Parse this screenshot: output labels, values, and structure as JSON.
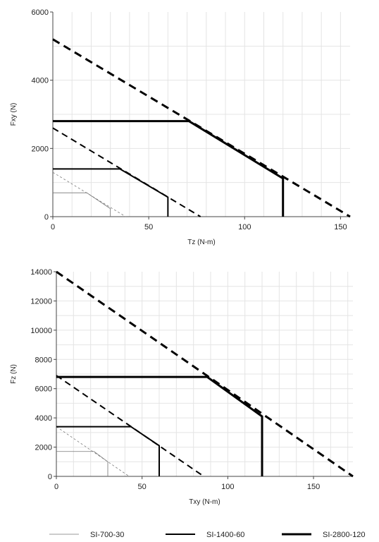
{
  "chart_data": [
    {
      "type": "line",
      "xlabel": "Tz (N-m)",
      "ylabel": "Fxy (N)",
      "xlim": [
        0,
        155
      ],
      "ylim": [
        0,
        6000
      ],
      "x_ticks": [
        0,
        50,
        100,
        150
      ],
      "y_ticks": [
        0,
        2000,
        4000,
        6000
      ],
      "grid": true,
      "series": [
        {
          "name": "SI-700-30",
          "color": "#777777",
          "envelope": [
            [
              0,
              1300
            ],
            [
              38,
              0
            ]
          ],
          "rated": [
            [
              0,
              700
            ],
            [
              17.7,
              700
            ],
            [
              30,
              235
            ],
            [
              30,
              0
            ]
          ]
        },
        {
          "name": "SI-1400-60",
          "color": "#000000",
          "envelope": [
            [
              0,
              2600
            ],
            [
              77,
              0
            ]
          ],
          "rated": [
            [
              0,
              1400
            ],
            [
              35,
              1400
            ],
            [
              60,
              570
            ],
            [
              60,
              0
            ]
          ]
        },
        {
          "name": "SI-2800-120",
          "color": "#000000",
          "envelope": [
            [
              0,
              5200
            ],
            [
              155,
              0
            ]
          ],
          "rated": [
            [
              0,
              2800
            ],
            [
              71,
              2800
            ],
            [
              120,
              1120
            ],
            [
              120,
              0
            ]
          ]
        }
      ]
    },
    {
      "type": "line",
      "xlabel": "Txy (N-m)",
      "ylabel": "Fz (N)",
      "xlim": [
        0,
        173
      ],
      "ylim": [
        0,
        14000
      ],
      "x_ticks": [
        0,
        50,
        100,
        150
      ],
      "y_ticks": [
        0,
        2000,
        4000,
        6000,
        8000,
        10000,
        12000,
        14000
      ],
      "grid": true,
      "series": [
        {
          "name": "SI-700-30",
          "color": "#777777",
          "envelope": [
            [
              0,
              3400
            ],
            [
              42.5,
              0
            ]
          ],
          "rated": [
            [
              0,
              1700
            ],
            [
              22,
              1700
            ],
            [
              30,
              1000
            ],
            [
              30,
              0
            ]
          ]
        },
        {
          "name": "SI-1400-60",
          "color": "#000000",
          "envelope": [
            [
              0,
              6900
            ],
            [
              86,
              0
            ]
          ],
          "rated": [
            [
              0,
              3400
            ],
            [
              43.5,
              3400
            ],
            [
              60,
              2100
            ],
            [
              60,
              0
            ]
          ]
        },
        {
          "name": "SI-2800-120",
          "color": "#000000",
          "envelope": [
            [
              0,
              14000
            ],
            [
              173,
              0
            ]
          ],
          "rated": [
            [
              0,
              6800
            ],
            [
              88,
              6800
            ],
            [
              120,
              4100
            ],
            [
              120,
              0
            ]
          ]
        }
      ]
    }
  ],
  "legend": {
    "items": [
      "SI-700-30",
      "SI-1400-60",
      "SI-2800-120"
    ],
    "placement": "bottom"
  }
}
